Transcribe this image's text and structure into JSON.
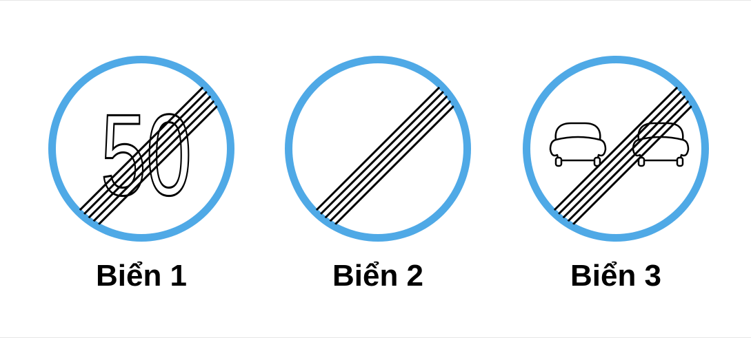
{
  "signs": [
    {
      "label": "Biển 1",
      "symbol": "speed-limit-end",
      "speed_value": "50"
    },
    {
      "label": "Biển 2",
      "symbol": "all-restrictions-end"
    },
    {
      "label": "Biển 3",
      "symbol": "no-overtaking-end"
    }
  ],
  "colors": {
    "ring": "#4FA9E6",
    "face": "#ffffff",
    "stroke": "#000000"
  }
}
